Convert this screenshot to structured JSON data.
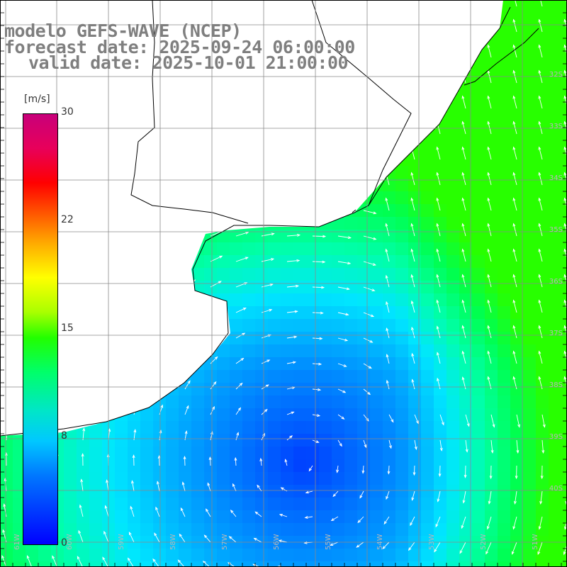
{
  "title": {
    "line1": "modelo GEFS-WAVE (NCEP)",
    "line2": "forecast date: 2025-09-24 06:00:00",
    "line3": "valid date: 2025-10-01 21:00:00"
  },
  "colorbar": {
    "unit": "[m/s]",
    "ticks": [
      "30",
      "22",
      "15",
      "8",
      "0"
    ],
    "stops": [
      "#0000ff",
      "#0078ff",
      "#00c8ff",
      "#00e6c8",
      "#00ff6a",
      "#22ff00",
      "#aaff00",
      "#ffff00",
      "#ffaa00",
      "#ff5500",
      "#ff0000",
      "#c8007a"
    ]
  },
  "grid_labels": {
    "lat": [
      "32S",
      "33S",
      "34S",
      "35S",
      "36S",
      "37S",
      "38S",
      "39S",
      "40S"
    ],
    "lon": [
      "61W",
      "60W",
      "59W",
      "58W",
      "57W",
      "56W",
      "55W",
      "54W",
      "53W",
      "52W",
      "51W"
    ]
  },
  "colors": {
    "land": "#ffffff",
    "coast": "#000000",
    "grid": "#8a8a8a",
    "arrows": "#ffffff",
    "title": "#7f7f7f"
  }
}
